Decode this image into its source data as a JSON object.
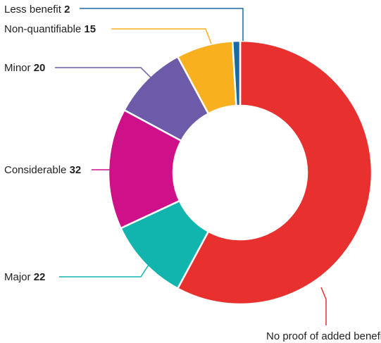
{
  "chart_data": {
    "type": "pie",
    "variant": "donut",
    "title": "",
    "slices": [
      {
        "label": "No proof of added benefit",
        "value": 125,
        "color": "#e8302f"
      },
      {
        "label": "Major",
        "value": 22,
        "color": "#12b5ae"
      },
      {
        "label": "Considerable",
        "value": 32,
        "color": "#cf1189"
      },
      {
        "label": "Minor",
        "value": 20,
        "color": "#6d5aa8"
      },
      {
        "label": "Non-quantifiable",
        "value": 15,
        "color": "#f8b01e"
      },
      {
        "label": "Less benefit",
        "value": 2,
        "color": "#1a6aa6"
      }
    ],
    "start_direction": "top (12 o'clock), clockwise",
    "legend": "none (labels with leader lines)"
  }
}
